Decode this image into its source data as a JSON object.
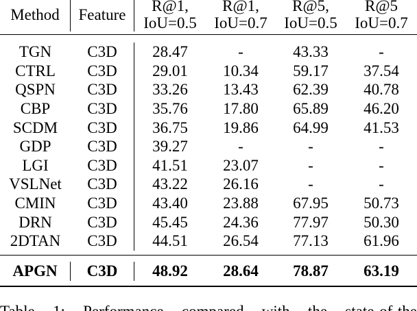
{
  "table": {
    "header": {
      "method": "Method",
      "feature": "Feature",
      "columns": [
        {
          "line1": "R@1,",
          "line2": "IoU=0.5"
        },
        {
          "line1": "R@1,",
          "line2": "IoU=0.7"
        },
        {
          "line1": "R@5,",
          "line2": "IoU=0.5"
        },
        {
          "line1": "R@5",
          "line2": "IoU=0.7"
        }
      ]
    },
    "rows": [
      {
        "method": "TGN",
        "feature": "C3D",
        "values": [
          "28.47",
          "-",
          "43.33",
          "-"
        ]
      },
      {
        "method": "CTRL",
        "feature": "C3D",
        "values": [
          "29.01",
          "10.34",
          "59.17",
          "37.54"
        ]
      },
      {
        "method": "QSPN",
        "feature": "C3D",
        "values": [
          "33.26",
          "13.43",
          "62.39",
          "40.78"
        ]
      },
      {
        "method": "CBP",
        "feature": "C3D",
        "values": [
          "35.76",
          "17.80",
          "65.89",
          "46.20"
        ]
      },
      {
        "method": "SCDM",
        "feature": "C3D",
        "values": [
          "36.75",
          "19.86",
          "64.99",
          "41.53"
        ]
      },
      {
        "method": "GDP",
        "feature": "C3D",
        "values": [
          "39.27",
          "-",
          "-",
          "-"
        ]
      },
      {
        "method": "LGI",
        "feature": "C3D",
        "values": [
          "41.51",
          "23.07",
          "-",
          "-"
        ]
      },
      {
        "method": "VSLNet",
        "feature": "C3D",
        "values": [
          "43.22",
          "26.16",
          "-",
          "-"
        ]
      },
      {
        "method": "CMIN",
        "feature": "C3D",
        "values": [
          "43.40",
          "23.88",
          "67.95",
          "50.73"
        ]
      },
      {
        "method": "DRN",
        "feature": "C3D",
        "values": [
          "45.45",
          "24.36",
          "77.97",
          "50.30"
        ]
      },
      {
        "method": "2DTAN",
        "feature": "C3D",
        "values": [
          "44.51",
          "26.54",
          "77.13",
          "61.96"
        ]
      }
    ],
    "ours": {
      "method": "APGN",
      "feature": "C3D",
      "values": [
        "48.92",
        "28.64",
        "78.87",
        "63.19"
      ]
    }
  },
  "caption": "Table 1: Performance compared with the state-of-the"
}
